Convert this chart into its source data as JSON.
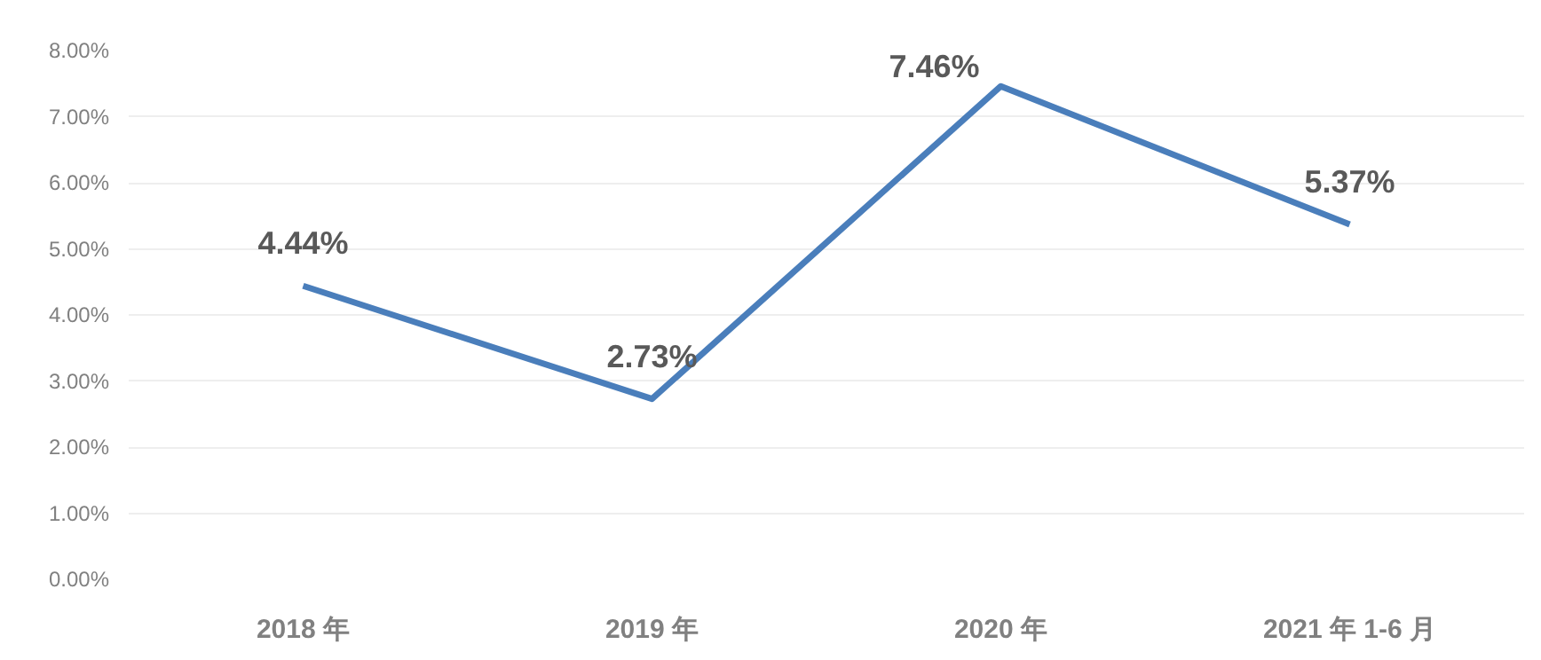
{
  "chart_data": {
    "type": "line",
    "categories": [
      "2018 年",
      "2019 年",
      "2020 年",
      "2021 年 1-6 月"
    ],
    "series": [
      {
        "color": "#4a7ebb",
        "values": [
          4.44,
          2.73,
          7.46,
          5.37
        ],
        "value_labels": [
          "4.44%",
          "2.73%",
          "7.46%",
          "5.37%"
        ]
      }
    ],
    "ylim": [
      0,
      8
    ],
    "yticks": [
      {
        "value": 0,
        "label": "0.00%"
      },
      {
        "value": 1,
        "label": "1.00%"
      },
      {
        "value": 2,
        "label": "2.00%"
      },
      {
        "value": 3,
        "label": "3.00%"
      },
      {
        "value": 4,
        "label": "4.00%"
      },
      {
        "value": 5,
        "label": "5.00%"
      },
      {
        "value": 6,
        "label": "6.00%"
      },
      {
        "value": 7,
        "label": "7.00%"
      },
      {
        "value": 8,
        "label": "8.00%"
      }
    ],
    "grid": "y",
    "marker": "none",
    "line_style": "solid"
  }
}
